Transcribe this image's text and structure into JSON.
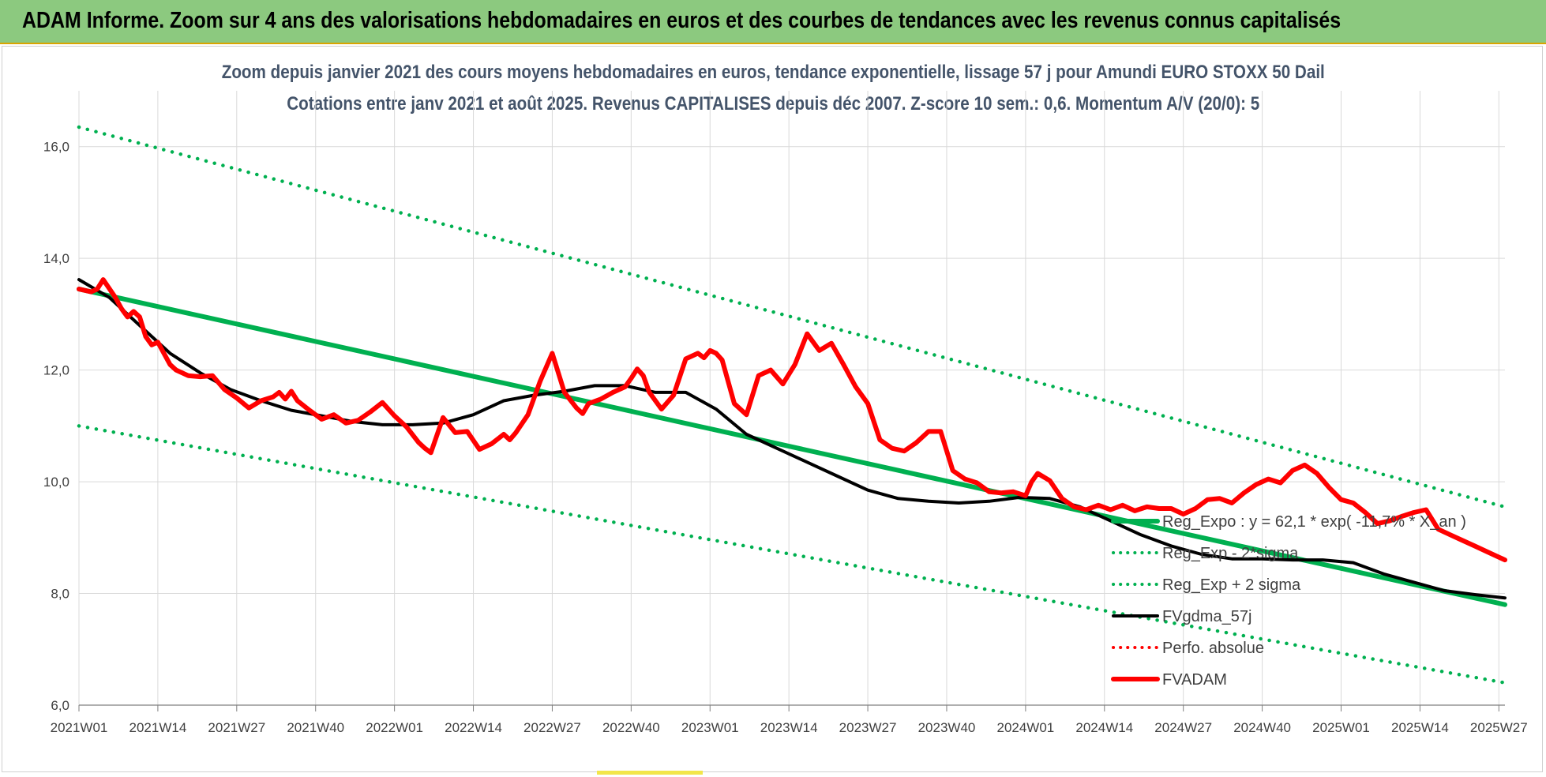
{
  "banner": "ADAM Informe. Zoom sur 4 ans des valorisations hebdomadaires en euros et des courbes de tendances avec les revenus connus capitalisés",
  "chart_data": {
    "type": "line",
    "title": "Zoom depuis janvier 2021 des cours moyens hebdomadaires en euros, tendance exponentielle, lissage 57 j pour Amundi EURO STOXX 50 Dail",
    "subtitle": "Cotations entre janv 2021 et août 2025. Revenus CAPITALISES depuis déc 2007. Z-score 10 sem.: 0,6. Momentum A/V (20/0): 5",
    "xlabel": "",
    "ylabel": "",
    "ylim": [
      6,
      17
    ],
    "y_ticks": [
      "6,0",
      "8,0",
      "10,0",
      "12,0",
      "14,0",
      "16,0"
    ],
    "x_ticks": [
      "2021W01",
      "2021W14",
      "2021W27",
      "2021W40",
      "2022W01",
      "2022W14",
      "2022W27",
      "2022W40",
      "2023W01",
      "2023W14",
      "2023W27",
      "2023W40",
      "2024W01",
      "2024W14",
      "2024W27",
      "2024W40",
      "2025W01",
      "2025W14",
      "2025W27"
    ],
    "x_weeks": [
      0,
      235
    ],
    "grid": true,
    "legend_position": "right",
    "colors": {
      "trend": "#00b050",
      "smooth": "#000000",
      "price": "#ff0000",
      "perf": "#ff0000"
    },
    "series": [
      {
        "name": "Reg_Expo : y = 62,1 * exp( -11,7% *  X_an )",
        "style": "solid",
        "color": "#00b050",
        "x": [
          0,
          235
        ],
        "values": [
          13.45,
          7.8
        ]
      },
      {
        "name": "Reg_Exp - 2*sigma",
        "style": "dotted",
        "color": "#00b050",
        "x": [
          0,
          235
        ],
        "values": [
          11.0,
          6.4
        ]
      },
      {
        "name": "Reg_Exp + 2 sigma",
        "style": "dotted",
        "color": "#00b050",
        "x": [
          0,
          235
        ],
        "values": [
          16.35,
          9.55
        ]
      },
      {
        "name": "FVgdma_57j",
        "style": "solid",
        "color": "#000000",
        "x": [
          0,
          5,
          10,
          15,
          20,
          25,
          30,
          35,
          40,
          45,
          50,
          55,
          60,
          65,
          70,
          75,
          80,
          85,
          90,
          95,
          100,
          105,
          110,
          115,
          120,
          125,
          130,
          135,
          140,
          145,
          150,
          155,
          160,
          165,
          170,
          175,
          180,
          185,
          190,
          195,
          200,
          205,
          210,
          215,
          220,
          225,
          230,
          235
        ],
        "values": [
          13.62,
          13.3,
          12.8,
          12.3,
          11.95,
          11.65,
          11.45,
          11.28,
          11.18,
          11.08,
          11.02,
          11.02,
          11.05,
          11.2,
          11.45,
          11.55,
          11.62,
          11.72,
          11.72,
          11.6,
          11.6,
          11.3,
          10.85,
          10.6,
          10.35,
          10.1,
          9.85,
          9.7,
          9.65,
          9.62,
          9.65,
          9.72,
          9.7,
          9.55,
          9.3,
          9.05,
          8.85,
          8.7,
          8.62,
          8.62,
          8.6,
          8.6,
          8.55,
          8.35,
          8.2,
          8.05,
          7.98,
          7.92
        ]
      },
      {
        "name": "Perfo. absolue",
        "style": "dotted",
        "color": "#ff0000",
        "x": [],
        "values": []
      },
      {
        "name": "FVADAM",
        "style": "solid",
        "color": "#ff0000",
        "x": [
          0,
          2,
          3,
          4,
          6,
          7,
          8,
          9,
          10,
          11,
          12,
          13,
          15,
          16,
          18,
          20,
          22,
          24,
          26,
          28,
          30,
          32,
          33,
          34,
          35,
          36,
          38,
          40,
          42,
          44,
          46,
          48,
          50,
          52,
          54,
          56,
          57,
          58,
          60,
          62,
          64,
          66,
          68,
          70,
          71,
          72,
          74,
          76,
          78,
          80,
          82,
          83,
          84,
          86,
          88,
          90,
          91,
          92,
          93,
          94,
          96,
          98,
          100,
          102,
          103,
          104,
          105,
          106,
          108,
          110,
          112,
          114,
          116,
          118,
          120,
          122,
          124,
          126,
          128,
          130,
          132,
          134,
          136,
          138,
          140,
          142,
          144,
          146,
          148,
          150,
          152,
          154,
          156,
          157,
          158,
          160,
          162,
          164,
          166,
          168,
          170,
          172,
          174,
          176,
          178,
          180,
          182,
          184,
          186,
          188,
          190,
          192,
          194,
          196,
          198,
          200,
          202,
          204,
          206,
          208,
          210,
          212,
          214,
          216,
          218,
          220,
          222,
          224,
          226,
          228,
          230,
          232,
          234,
          235
        ],
        "values": [
          13.45,
          13.4,
          13.45,
          13.62,
          13.3,
          13.1,
          12.95,
          13.05,
          12.95,
          12.6,
          12.45,
          12.5,
          12.1,
          12.0,
          11.9,
          11.88,
          11.9,
          11.65,
          11.5,
          11.32,
          11.45,
          11.52,
          11.6,
          11.48,
          11.62,
          11.45,
          11.28,
          11.12,
          11.2,
          11.05,
          11.1,
          11.25,
          11.42,
          11.18,
          10.98,
          10.7,
          10.6,
          10.52,
          11.15,
          10.88,
          10.9,
          10.58,
          10.68,
          10.85,
          10.75,
          10.88,
          11.2,
          11.8,
          12.3,
          11.6,
          11.32,
          11.22,
          11.4,
          11.48,
          11.6,
          11.7,
          11.85,
          12.02,
          11.9,
          11.6,
          11.3,
          11.55,
          12.2,
          12.3,
          12.22,
          12.35,
          12.3,
          12.18,
          11.4,
          11.2,
          11.9,
          12.0,
          11.75,
          12.1,
          12.65,
          12.35,
          12.48,
          12.1,
          11.7,
          11.4,
          10.75,
          10.6,
          10.55,
          10.7,
          10.9,
          10.9,
          10.2,
          10.05,
          9.98,
          9.82,
          9.8,
          9.82,
          9.75,
          10.0,
          10.15,
          10.02,
          9.7,
          9.55,
          9.5,
          9.58,
          9.5,
          9.58,
          9.48,
          9.55,
          9.52,
          9.52,
          9.42,
          9.52,
          9.68,
          9.7,
          9.62,
          9.8,
          9.95,
          10.05,
          9.98,
          10.2,
          10.3,
          10.15,
          9.9,
          9.68,
          9.62,
          9.45,
          9.25,
          9.3,
          9.38,
          9.45,
          9.5,
          9.15,
          9.05,
          8.95,
          8.85,
          8.75,
          8.65,
          8.6
        ]
      }
    ]
  },
  "legend_entries": [
    "Reg_Expo : y = 62,1 * exp( -11,7% *  X_an )",
    "Reg_Exp - 2*sigma",
    "Reg_Exp + 2 sigma",
    "FVgdma_57j",
    "Perfo. absolue",
    "FVADAM"
  ]
}
